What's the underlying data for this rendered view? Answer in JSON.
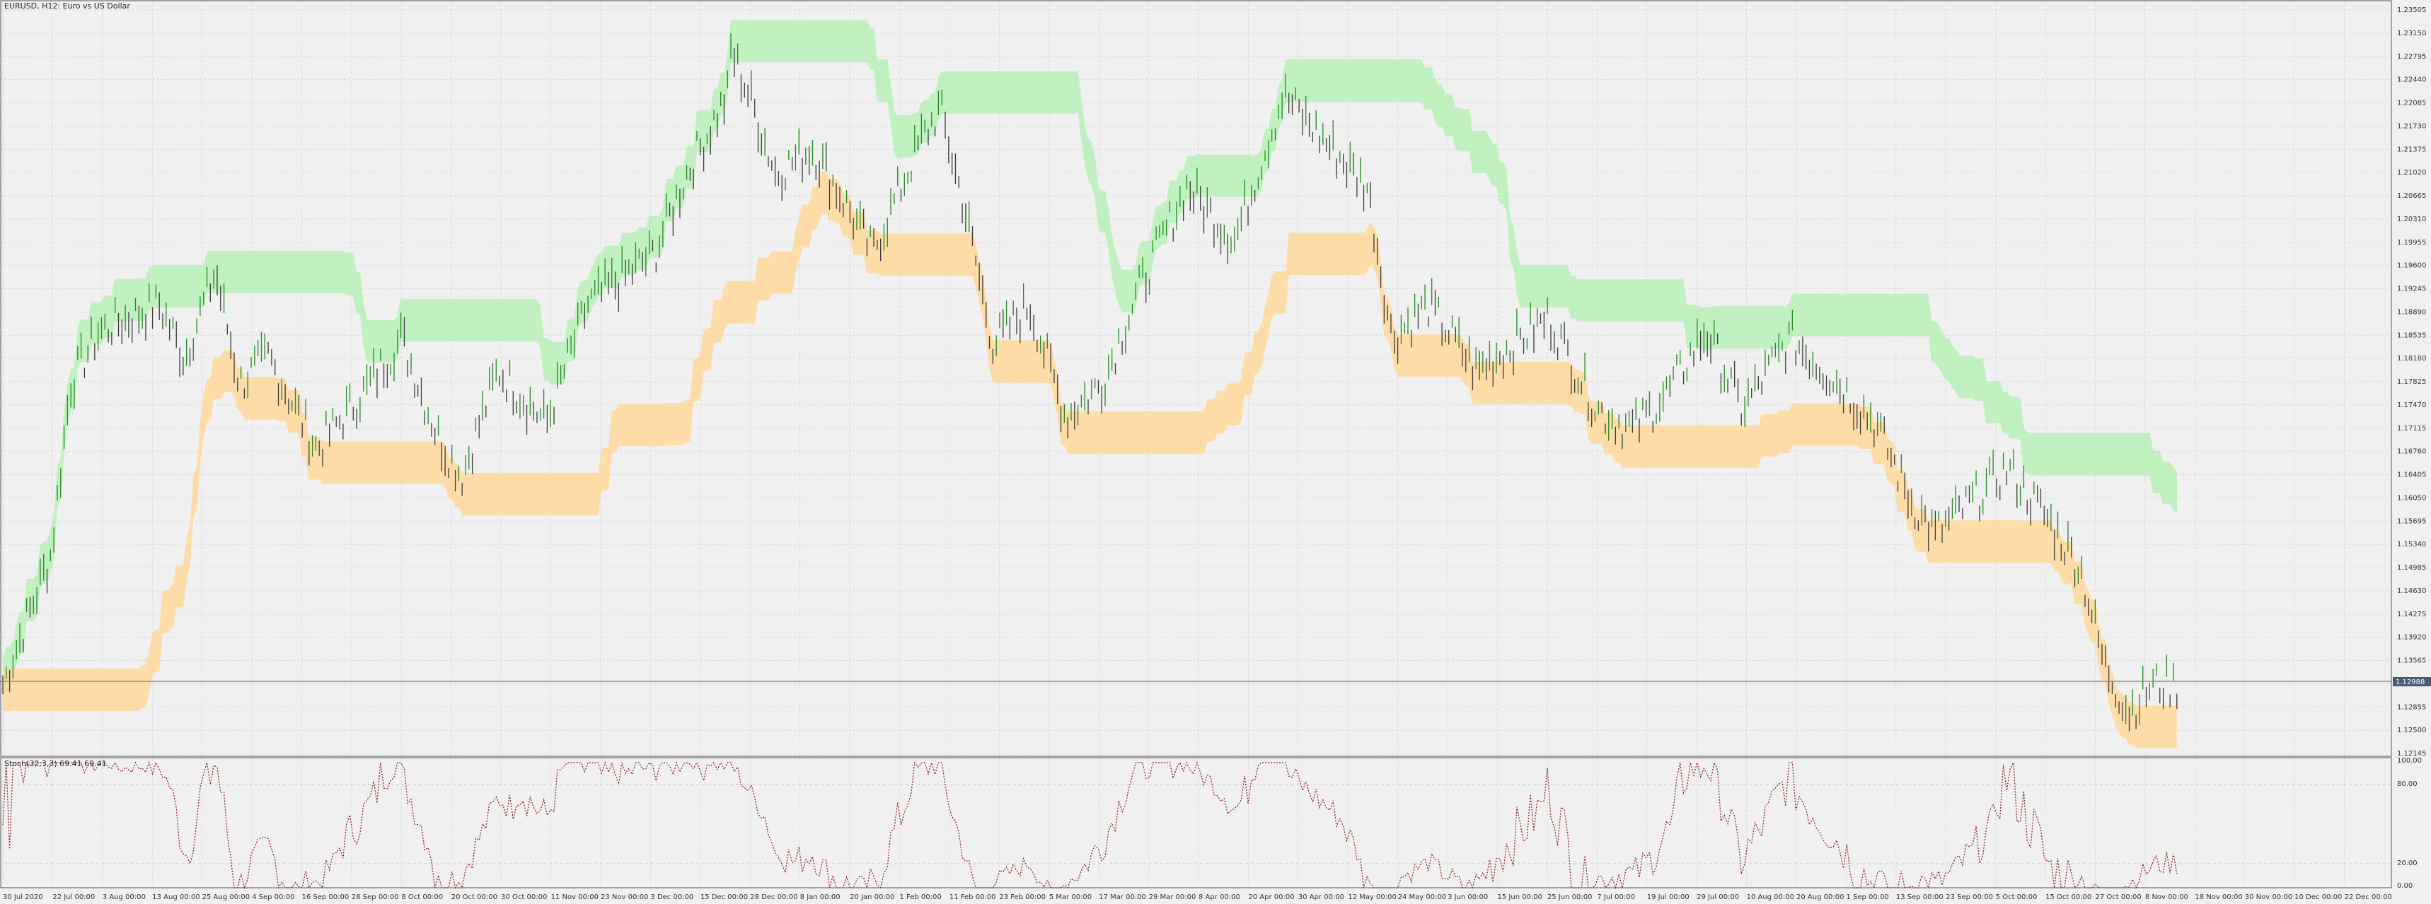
{
  "window": {
    "symbol_title": "EURUSD, H12:  Euro vs US Dollar",
    "stoch_title": "Stoch(32,3,3) 69.41 69.41"
  },
  "colors": {
    "background": "#f0f0f0",
    "grid": "#d8d8d8",
    "bull_bar": "#1f8a1f",
    "bear_bar": "#3a3a3a",
    "upper_band": "#b9f0b9",
    "lower_band": "#ffd89a",
    "trend_line": "#d23a1a",
    "stoch_line": "#8b1a1a",
    "price_line": "#8a8a8a",
    "price_tag_bg": "#4a5a78"
  },
  "price_axis": {
    "labels": [
      "1.23505",
      "1.23150",
      "1.22795",
      "1.22440",
      "1.22085",
      "1.21730",
      "1.21375",
      "1.21020",
      "1.20665",
      "1.20310",
      "1.19955",
      "1.19600",
      "1.19245",
      "1.18890",
      "1.18535",
      "1.18180",
      "1.17825",
      "1.17470",
      "1.17115",
      "1.16760",
      "1.16405",
      "1.16050",
      "1.15695",
      "1.15340",
      "1.14985",
      "1.14630",
      "1.14275",
      "1.13920",
      "1.13565",
      "1.13210",
      "1.12855",
      "1.12500",
      "1.12145"
    ],
    "current_price": "1.12988"
  },
  "stoch_axis": {
    "labels": [
      "100.00",
      "80.00",
      "20.00",
      "0.00"
    ]
  },
  "time_axis": {
    "labels": [
      "30 Jul 2020",
      "22 Jul 00:00",
      "3 Aug 00:00",
      "13 Aug 00:00",
      "25 Aug 00:00",
      "4 Sep 00:00",
      "16 Sep 00:00",
      "28 Sep 00:00",
      "8 Oct 00:00",
      "20 Oct 00:00",
      "30 Oct 00:00",
      "11 Nov 00:00",
      "23 Nov 00:00",
      "3 Dec 00:00",
      "15 Dec 00:00",
      "28 Dec 00:00",
      "8 Jan 00:00",
      "20 Jan 00:00",
      "1 Feb 00:00",
      "11 Feb 00:00",
      "23 Feb 00:00",
      "5 Mar 00:00",
      "17 Mar 00:00",
      "29 Mar 00:00",
      "8 Apr 00:00",
      "20 Apr 00:00",
      "30 Apr 00:00",
      "12 May 00:00",
      "24 May 00:00",
      "3 Jun 00:00",
      "15 Jun 00:00",
      "25 Jun 00:00",
      "7 Jul 00:00",
      "19 Jul 00:00",
      "29 Jul 00:00",
      "10 Aug 00:00",
      "20 Aug 00:00",
      "1 Sep 00:00",
      "13 Sep 00:00",
      "23 Sep 00:00",
      "5 Oct 00:00",
      "15 Oct 00:00",
      "27 Oct 00:00",
      "8 Nov 00:00",
      "18 Nov 00:00",
      "30 Nov 00:00",
      "10 Dec 00:00",
      "22 Dec 00:00"
    ]
  },
  "chart_data": {
    "type": "candlestick",
    "price_profile": [
      [
        0,
        1.132
      ],
      [
        0.02,
        1.152
      ],
      [
        0.028,
        1.178
      ],
      [
        0.04,
        1.186
      ],
      [
        0.065,
        1.19
      ],
      [
        0.075,
        1.182
      ],
      [
        0.088,
        1.195
      ],
      [
        0.098,
        1.178
      ],
      [
        0.11,
        1.182
      ],
      [
        0.13,
        1.168
      ],
      [
        0.15,
        1.177
      ],
      [
        0.165,
        1.185
      ],
      [
        0.18,
        1.17
      ],
      [
        0.19,
        1.164
      ],
      [
        0.205,
        1.18
      ],
      [
        0.225,
        1.172
      ],
      [
        0.242,
        1.19
      ],
      [
        0.27,
        1.198
      ],
      [
        0.283,
        1.21
      ],
      [
        0.3,
        1.222
      ],
      [
        0.3,
        1.2225
      ],
      [
        0.29,
        1.227
      ],
      [
        0.297,
        1.233
      ],
      [
        0.31,
        1.221
      ],
      [
        0.32,
        1.21
      ],
      [
        0.335,
        1.214
      ],
      [
        0.345,
        1.208
      ],
      [
        0.36,
        1.198
      ],
      [
        0.38,
        1.215
      ],
      [
        0.388,
        1.22
      ],
      [
        0.398,
        1.205
      ],
      [
        0.41,
        1.184
      ],
      [
        0.425,
        1.19
      ],
      [
        0.44,
        1.173
      ],
      [
        0.455,
        1.178
      ],
      [
        0.47,
        1.192
      ],
      [
        0.49,
        1.208
      ],
      [
        0.51,
        1.2
      ],
      [
        0.53,
        1.222
      ],
      [
        0.55,
        1.214
      ],
      [
        0.565,
        1.208
      ],
      [
        0.575,
        1.185
      ],
      [
        0.59,
        1.19
      ],
      [
        0.61,
        1.18
      ],
      [
        0.625,
        1.184
      ],
      [
        0.64,
        1.188
      ],
      [
        0.66,
        1.174
      ],
      [
        0.675,
        1.171
      ],
      [
        0.69,
        1.177
      ],
      [
        0.705,
        1.186
      ],
      [
        0.72,
        1.174
      ],
      [
        0.74,
        1.185
      ],
      [
        0.76,
        1.178
      ],
      [
        0.775,
        1.172
      ],
      [
        0.79,
        1.16
      ],
      [
        0.8,
        1.155
      ],
      [
        0.815,
        1.16
      ],
      [
        0.83,
        1.165
      ],
      [
        0.845,
        1.158
      ],
      [
        0.86,
        1.15
      ],
      [
        0.87,
        1.135
      ],
      [
        0.88,
        1.128
      ],
      [
        0.89,
        1.132
      ]
    ]
  }
}
